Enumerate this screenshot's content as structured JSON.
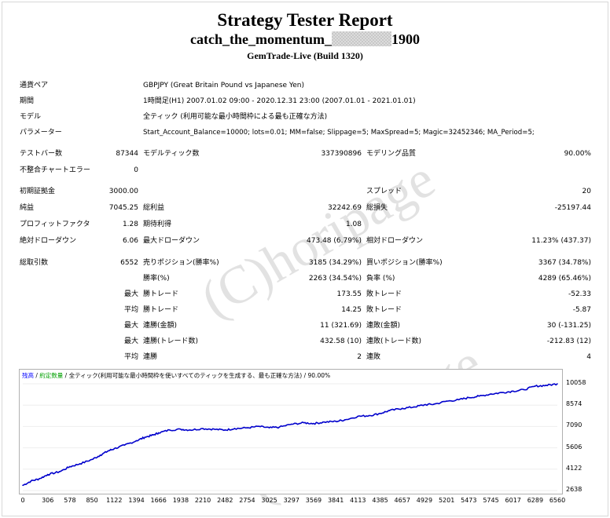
{
  "title": "Strategy Tester Report",
  "subtitle": {
    "prefix": "catch_the_momentum_",
    "suffix": "1900"
  },
  "build": "GemTrade-Live (Build 1320)",
  "watermark": "(C)horipage",
  "rows": {
    "symbol": {
      "label": "通貨ペア",
      "value": "GBPJPY (Great Britain Pound vs Japanese Yen)"
    },
    "period": {
      "label": "期間",
      "value": "1時間足(H1) 2007.01.02 09:00 - 2020.12.31 23:00 (2007.01.01 - 2021.01.01)"
    },
    "model": {
      "label": "モデル",
      "value": "全ティック (利用可能な最小時間枠による最も正確な方法)"
    },
    "params": {
      "label": "パラメーター",
      "value": "Start_Account_Balance=10000; lots=0.01; MM=false; Slippage=5; MaxSpread=5; Magic=32452346; MA_Period=5;"
    }
  },
  "stats": {
    "bars_label": "テストバー数",
    "bars_value": "87344",
    "ticks_label": "モデルティック数",
    "ticks_value": "337390896",
    "quality_label": "モデリング品質",
    "quality_value": "90.00%",
    "mismatch_label": "不整合チャートエラー",
    "mismatch_value": "0",
    "deposit_label": "初期証拠金",
    "deposit_value": "3000.00",
    "spread_label": "スプレッド",
    "spread_value": "20",
    "net_label": "純益",
    "net_value": "7045.25",
    "gross_profit_label": "総利益",
    "gross_profit_value": "32242.69",
    "gross_loss_label": "総損失",
    "gross_loss_value": "-25197.44",
    "pf_label": "プロフィットファクタ",
    "pf_value": "1.28",
    "payoff_label": "期待利得",
    "payoff_value": "1.08",
    "abs_dd_label": "絶対ドローダウン",
    "abs_dd_value": "6.06",
    "max_dd_label": "最大ドローダウン",
    "max_dd_value": "473.48 (6.79%)",
    "rel_dd_label": "相対ドローダウン",
    "rel_dd_value": "11.23% (437.37)",
    "trades_label": "総取引数",
    "trades_value": "6552",
    "short_label": "売りポジション(勝率%)",
    "short_value": "3185 (34.29%)",
    "long_label": "買いポジション(勝率%)",
    "long_value": "3367 (34.78%)",
    "win_label": "勝率(%)",
    "win_value": "2263 (34.54%)",
    "loss_label": "負率 (%)",
    "loss_value": "4289 (65.46%)",
    "max_prefix": "最大",
    "avg_prefix": "平均",
    "largest_win_label": "勝トレード",
    "largest_win_value": "173.55",
    "largest_loss_label": "敗トレード",
    "largest_loss_value": "-52.33",
    "avg_win_label": "勝トレード",
    "avg_win_value": "14.25",
    "avg_loss_label": "敗トレード",
    "avg_loss_value": "-5.87",
    "cons_wins_label": "連勝(金額)",
    "cons_wins_value": "11 (321.69)",
    "cons_losses_label": "連敗(金額)",
    "cons_losses_value": "30 (-131.25)",
    "cons_profit_label": "連勝(トレード数)",
    "cons_profit_value": "432.58 (10)",
    "cons_loss_label": "連敗(トレード数)",
    "cons_loss_value": "-212.83 (12)",
    "avg_cons_wins_label": "連勝",
    "avg_cons_wins_value": "2",
    "avg_cons_losses_label": "連敗",
    "avg_cons_losses_value": "4"
  },
  "legend": {
    "balance": "残高",
    "sep1": " / ",
    "lots": "約定数量",
    "sep2": " / ",
    "model": "全ティック(利用可能な最小時間枠を使いすべてのティックを生成する、最も正確な方法)",
    "sep3": " / ",
    "quality": "90.00%",
    "balance_color": "#0000ff",
    "lots_color": "#00a000"
  },
  "chart_data": {
    "type": "line",
    "x_ticks": [
      "0",
      "306",
      "578",
      "850",
      "1122",
      "1394",
      "1666",
      "1938",
      "2210",
      "2482",
      "2754",
      "3025",
      "3297",
      "3569",
      "3841",
      "4113",
      "4385",
      "4657",
      "4929",
      "5201",
      "5473",
      "5745",
      "6017",
      "6289",
      "6560"
    ],
    "y_ticks": [
      "10058",
      "8574",
      "7090",
      "5606",
      "4122",
      "2638"
    ],
    "xlim": [
      0,
      6560
    ],
    "ylim": [
      2638,
      10058
    ],
    "color": "#0000cc",
    "series": [
      {
        "x": [
          0,
          100,
          200,
          306,
          450,
          578,
          700,
          850,
          950,
          1050,
          1122,
          1250,
          1394,
          1500,
          1600,
          1666,
          1800,
          1938,
          2050,
          2210,
          2350,
          2482,
          2600,
          2754,
          2900,
          3025,
          3150,
          3297,
          3450,
          3569,
          3700,
          3841,
          3950,
          4113,
          4250,
          4385,
          4500,
          4657,
          4800,
          4929,
          5050,
          5201,
          5350,
          5473,
          5600,
          5745,
          5880,
          6017,
          6150,
          6289,
          6420,
          6560
        ],
        "y": [
          3000,
          3300,
          3450,
          3750,
          3950,
          4300,
          4500,
          4800,
          5100,
          5400,
          5550,
          5800,
          6100,
          6350,
          6500,
          6650,
          6850,
          6900,
          6850,
          6950,
          6900,
          6850,
          6950,
          7000,
          7100,
          7000,
          7050,
          7250,
          7350,
          7300,
          7400,
          7450,
          7550,
          7800,
          7850,
          8000,
          8200,
          8350,
          8450,
          8600,
          8650,
          8850,
          8950,
          9100,
          9200,
          9350,
          9450,
          9550,
          9650,
          9900,
          9950,
          10058
        ]
      }
    ]
  }
}
